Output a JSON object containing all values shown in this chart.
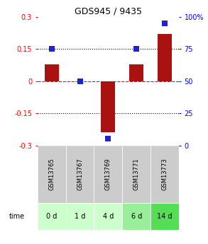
{
  "title": "GDS945 / 9435",
  "samples": [
    "GSM13765",
    "GSM13767",
    "GSM13769",
    "GSM13771",
    "GSM13773"
  ],
  "time_labels": [
    "0 d",
    "1 d",
    "4 d",
    "6 d",
    "14 d"
  ],
  "log_ratio": [
    0.08,
    0.0,
    -0.24,
    0.08,
    0.22
  ],
  "percentile_rank": [
    75,
    50,
    5,
    75,
    95
  ],
  "bar_color": "#aa1111",
  "dot_color": "#2222cc",
  "ylim": [
    -0.3,
    0.3
  ],
  "right_ylim": [
    0,
    100
  ],
  "hlines": [
    0.15,
    0.0,
    -0.15
  ],
  "hline_styles": [
    "dotted",
    "dashed",
    "dotted"
  ],
  "hline_colors": [
    "black",
    "red",
    "black"
  ],
  "right_yticks": [
    0,
    25,
    50,
    75,
    100
  ],
  "right_yticklabels": [
    "0",
    "25",
    "50",
    "75",
    "100%"
  ],
  "left_yticks": [
    -0.3,
    -0.15,
    0,
    0.15,
    0.3
  ],
  "left_yticklabels": [
    "-0.3",
    "-0.15",
    "0",
    "0.15",
    "0.3"
  ],
  "cell_colors_row2": [
    "#ccffcc",
    "#ccffcc",
    "#ccffcc",
    "#99ee99",
    "#55dd55"
  ],
  "cell_color_row1": "#cccccc",
  "bar_width": 0.5,
  "dot_size": 30,
  "time_arrow_color": "#888888"
}
